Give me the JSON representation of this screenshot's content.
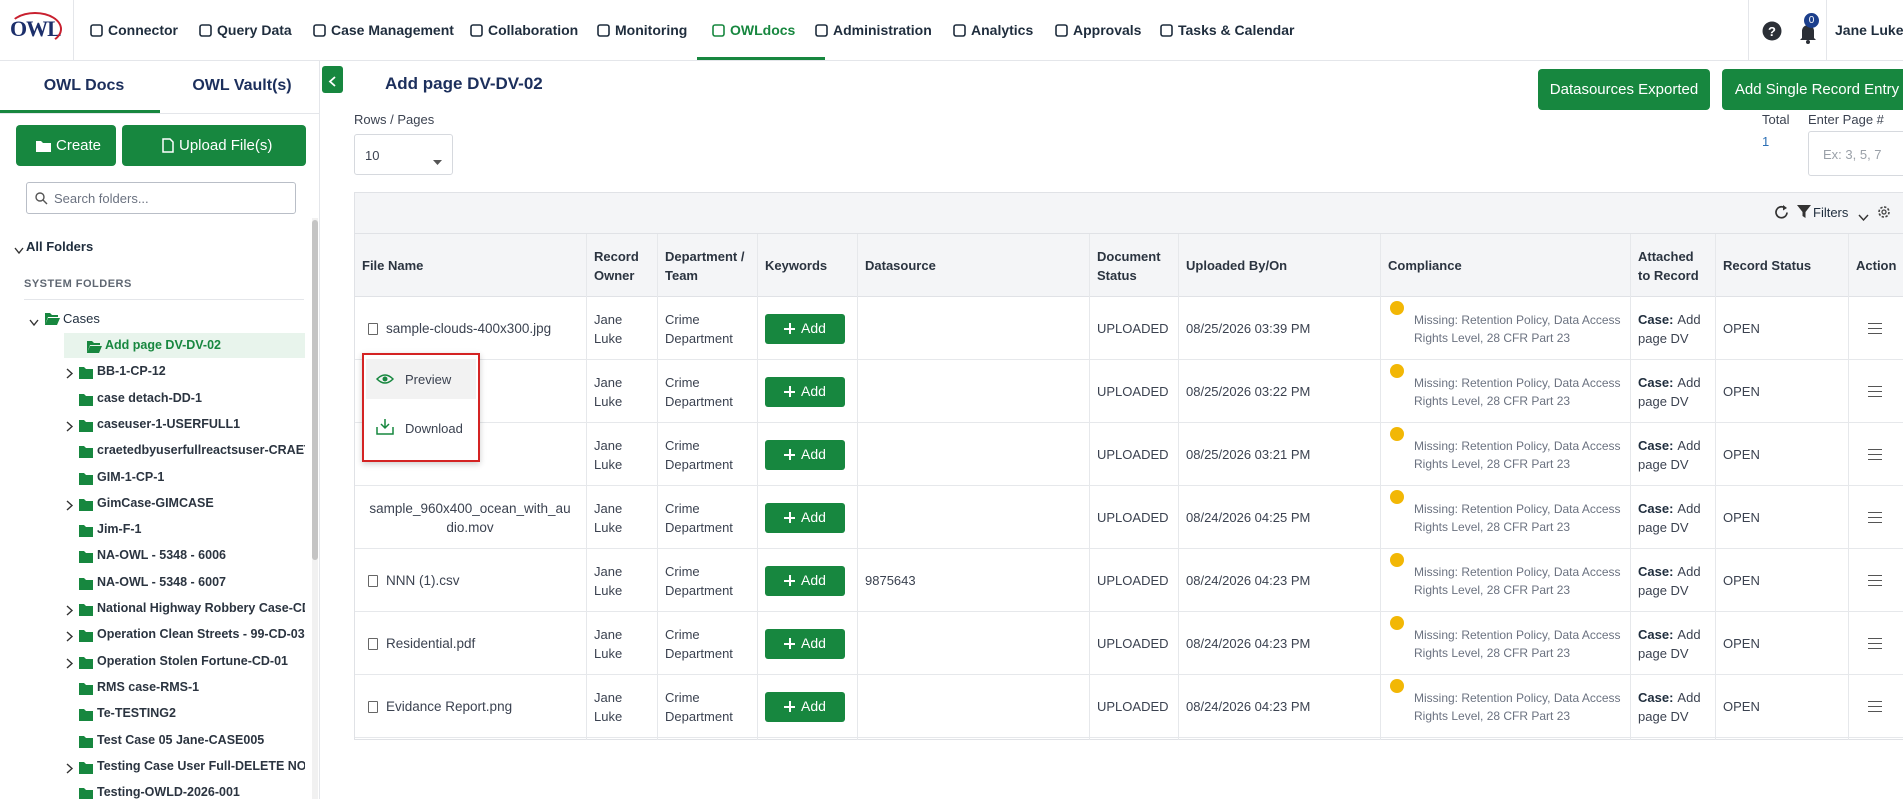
{
  "nav": {
    "logo": "OWL",
    "items": [
      "Connector",
      "Query Data",
      "Case Management",
      "Collaboration",
      "Monitoring",
      "OWLdocs",
      "Administration",
      "Analytics",
      "Approvals",
      "Tasks & Calendar"
    ],
    "active": "OWLdocs",
    "notifications": 0,
    "user": "Jane Luke"
  },
  "sidebar": {
    "tabs": [
      "OWL Docs",
      "OWL Vault(s)"
    ],
    "create": "Create",
    "upload": "Upload File(s)",
    "search_placeholder": "Search folders...",
    "all_folders": "All Folders",
    "section": "SYSTEM FOLDERS",
    "root": "Cases",
    "folders": [
      {
        "name": "Add page DV-DV-02",
        "caret": false,
        "active": true
      },
      {
        "name": "BB-1-CP-12",
        "caret": true
      },
      {
        "name": "case detach-DD-1",
        "caret": false
      },
      {
        "name": "caseuser-1-USERFULL1",
        "caret": true
      },
      {
        "name": "craetedbyuserfullreactsuser-CRAETE",
        "caret": false
      },
      {
        "name": "GIM-1-CP-1",
        "caret": false
      },
      {
        "name": "GimCase-GIMCASE",
        "caret": true
      },
      {
        "name": "Jim-F-1",
        "caret": false
      },
      {
        "name": "NA-OWL - 5348 - 6006",
        "caret": false
      },
      {
        "name": "NA-OWL - 5348 - 6007",
        "caret": false
      },
      {
        "name": "National Highway Robbery Case-CD-(",
        "caret": true
      },
      {
        "name": "Operation Clean Streets - 99-CD-03",
        "caret": true
      },
      {
        "name": "Operation Stolen Fortune-CD-01",
        "caret": true
      },
      {
        "name": "RMS case-RMS-1",
        "caret": false
      },
      {
        "name": "Te-TESTING2",
        "caret": false
      },
      {
        "name": "Test Case 05 Jane-CASE005",
        "caret": false
      },
      {
        "name": "Testing Case User Full-DELETE NON-I",
        "caret": true
      },
      {
        "name": "Testing-OWLD-2026-001",
        "caret": false
      }
    ]
  },
  "main": {
    "title": "Add page DV-DV-02",
    "buttons": [
      "Datasources Exported",
      "Add Single Record Entry"
    ],
    "rows_label": "Rows / Pages",
    "rows_value": 10,
    "total_label": "Total",
    "total_value": 1,
    "page_label": "Enter Page #",
    "page_placeholder": "Ex: 3, 5, 7",
    "filters": "Filters",
    "table": {
      "headers": [
        "File Name",
        "Record Owner",
        "Department / Team",
        "Keywords",
        "Datasource",
        "Document Status",
        "Uploaded By/On",
        "Compliance",
        "Attached to Record",
        "Record Status",
        "Action"
      ],
      "add_button": "Add",
      "case_label": "Case:",
      "rows": [
        {
          "file": "sample-clouds-400x300.jpg",
          "owner": "Jane Luke",
          "dept": "Crime Department",
          "datasource": null,
          "status": "UPLOADED",
          "uploaded": "08/25/2026 03:39 PM",
          "compliance": "Missing: Retention Policy, Data Access Rights Level, 28 CFR Part 23",
          "attached": "Add page DV",
          "record_status": "OPEN"
        },
        {
          "file": null,
          "owner": "Jane Luke",
          "dept": "Crime Department",
          "datasource": null,
          "status": "UPLOADED",
          "uploaded": "08/25/2026 03:22 PM",
          "compliance": "Missing: Retention Policy, Data Access Rights Level, 28 CFR Part 23",
          "attached": "Add page DV",
          "record_status": "OPEN"
        },
        {
          "file": null,
          "owner": "Jane Luke",
          "dept": "Crime Department",
          "datasource": null,
          "status": "UPLOADED",
          "uploaded": "08/25/2026 03:21 PM",
          "compliance": "Missing: Retention Policy, Data Access Rights Level, 28 CFR Part 23",
          "attached": "Add page DV",
          "record_status": "OPEN"
        },
        {
          "file": "sample_960x400_ocean_with_audio.mov",
          "owner": "Jane Luke",
          "dept": "Crime Department",
          "datasource": null,
          "status": "UPLOADED",
          "uploaded": "08/24/2026 04:25 PM",
          "compliance": "Missing: Retention Policy, Data Access Rights Level, 28 CFR Part 23",
          "attached": "Add page DV",
          "record_status": "OPEN"
        },
        {
          "file": "NNN (1).csv",
          "owner": "Jane Luke",
          "dept": "Crime Department",
          "datasource": "9875643",
          "status": "UPLOADED",
          "uploaded": "08/24/2026 04:23 PM",
          "compliance": "Missing: Retention Policy, Data Access Rights Level, 28 CFR Part 23",
          "attached": "Add page DV",
          "record_status": "OPEN"
        },
        {
          "file": "Residential.pdf",
          "owner": "Jane Luke",
          "dept": "Crime Department",
          "datasource": null,
          "status": "UPLOADED",
          "uploaded": "08/24/2026 04:23 PM",
          "compliance": "Missing: Retention Policy, Data Access Rights Level, 28 CFR Part 23",
          "attached": "Add page DV",
          "record_status": "OPEN"
        },
        {
          "file": "Evidance Report.png",
          "owner": "Jane Luke",
          "dept": "Crime Department",
          "datasource": null,
          "status": "UPLOADED",
          "uploaded": "08/24/2026 04:23 PM",
          "compliance": "Missing: Retention Policy, Data Access Rights Level, 28 CFR Part 23",
          "attached": "Add page DV",
          "record_status": "OPEN"
        }
      ]
    },
    "menu": [
      "Preview",
      "Download"
    ]
  }
}
